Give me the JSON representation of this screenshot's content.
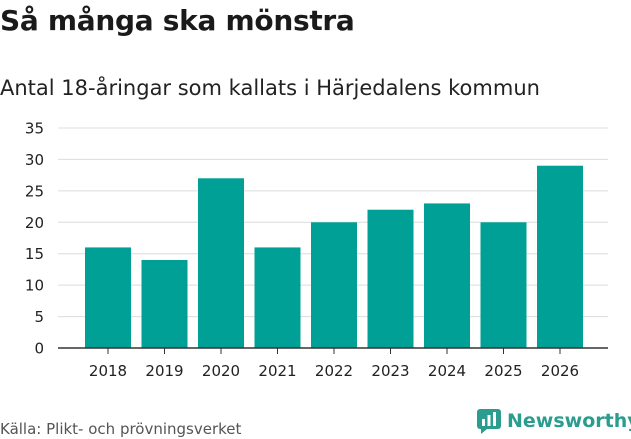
{
  "title": "Så många ska mönstra",
  "subtitle": "Antal 18-åringar som kallats i Härjedalens kommun",
  "source": "Källa: Plikt- och prövningsverket",
  "brand": {
    "name": "Newsworthy",
    "icon": "newsworthy-logo-icon",
    "color": "#2a9d8f"
  },
  "colors": {
    "bar": "#00a096",
    "grid": "#dcdcdc",
    "axis": "#333333"
  },
  "chart_data": {
    "type": "bar",
    "title": "Så många ska mönstra",
    "subtitle": "Antal 18-åringar som kallats i Härjedalens kommun",
    "categories": [
      "2018",
      "2019",
      "2020",
      "2021",
      "2022",
      "2023",
      "2024",
      "2025",
      "2026"
    ],
    "values": [
      16,
      14,
      27,
      16,
      20,
      22,
      23,
      20,
      29
    ],
    "yticks": [
      0,
      5,
      10,
      15,
      20,
      25,
      30,
      35
    ],
    "ylim": [
      0,
      35
    ],
    "xlabel": "",
    "ylabel": "",
    "grid": true
  }
}
